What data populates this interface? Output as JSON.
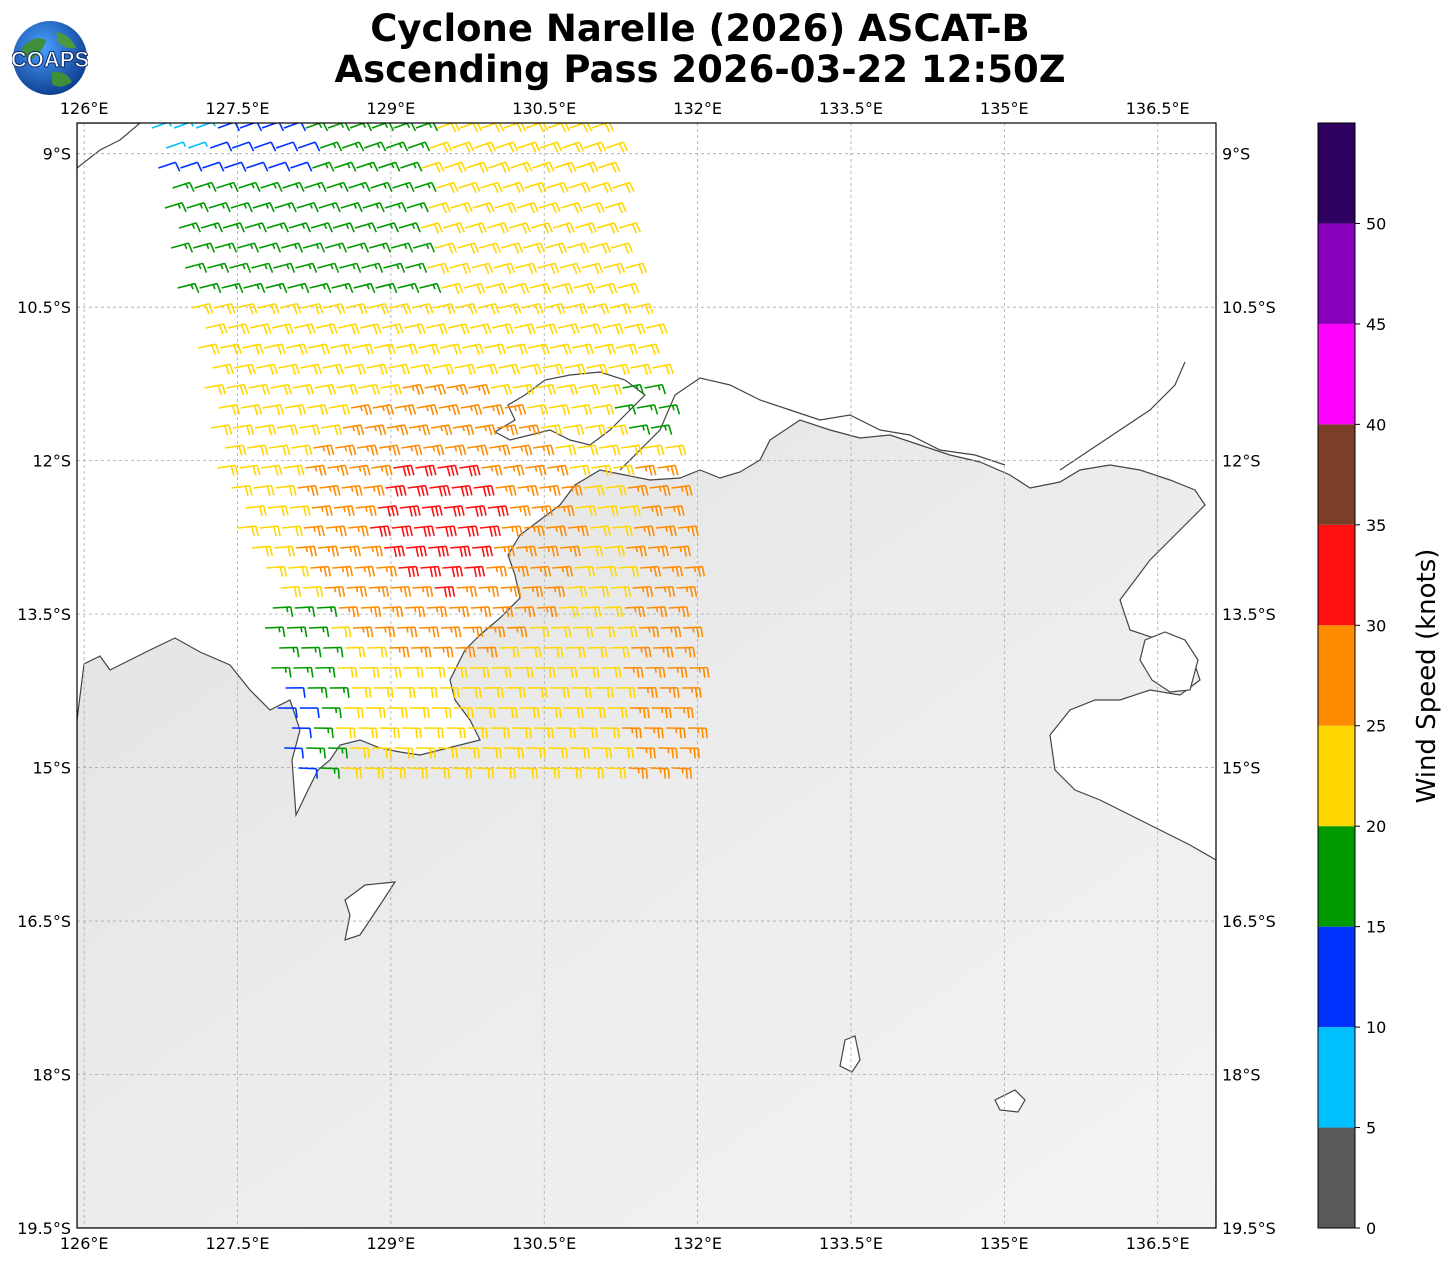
{
  "title_line1": "Cyclone Narelle (2026) ASCAT-B",
  "title_line2": "Ascending Pass 2026-03-22 12:50Z",
  "logo_text": "COAPS",
  "map": {
    "lon_ticks": [
      "126°E",
      "127.5°E",
      "129°E",
      "130.5°E",
      "132°E",
      "133.5°E",
      "135°E",
      "136.5°E"
    ],
    "lat_ticks": [
      "9°S",
      "10.5°S",
      "12°S",
      "13.5°S",
      "15°S",
      "16.5°S",
      "18°S",
      "19.5°S"
    ],
    "lon_range": [
      125.93,
      137.07
    ],
    "lat_range": [
      -19.5,
      -8.7
    ]
  },
  "colorbar": {
    "title": "Wind Speed (knots)",
    "tick_labels": [
      "0",
      "5",
      "10",
      "15",
      "20",
      "25",
      "30",
      "35",
      "40",
      "45",
      "50"
    ],
    "bins": [
      {
        "min": 0,
        "max": 5,
        "color": "#595959"
      },
      {
        "min": 5,
        "max": 10,
        "color": "#00bfff"
      },
      {
        "min": 10,
        "max": 15,
        "color": "#0033ff"
      },
      {
        "min": 15,
        "max": 20,
        "color": "#009900"
      },
      {
        "min": 20,
        "max": 25,
        "color": "#ffd700"
      },
      {
        "min": 25,
        "max": 30,
        "color": "#ff8c00"
      },
      {
        "min": 30,
        "max": 35,
        "color": "#ff1010"
      },
      {
        "min": 35,
        "max": 40,
        "color": "#7b3f29"
      },
      {
        "min": 40,
        "max": 45,
        "color": "#ff00ff"
      },
      {
        "min": 45,
        "max": 50,
        "color": "#8800bb"
      },
      {
        "min": 50,
        "max": 55,
        "color": "#2e0060"
      }
    ]
  }
}
